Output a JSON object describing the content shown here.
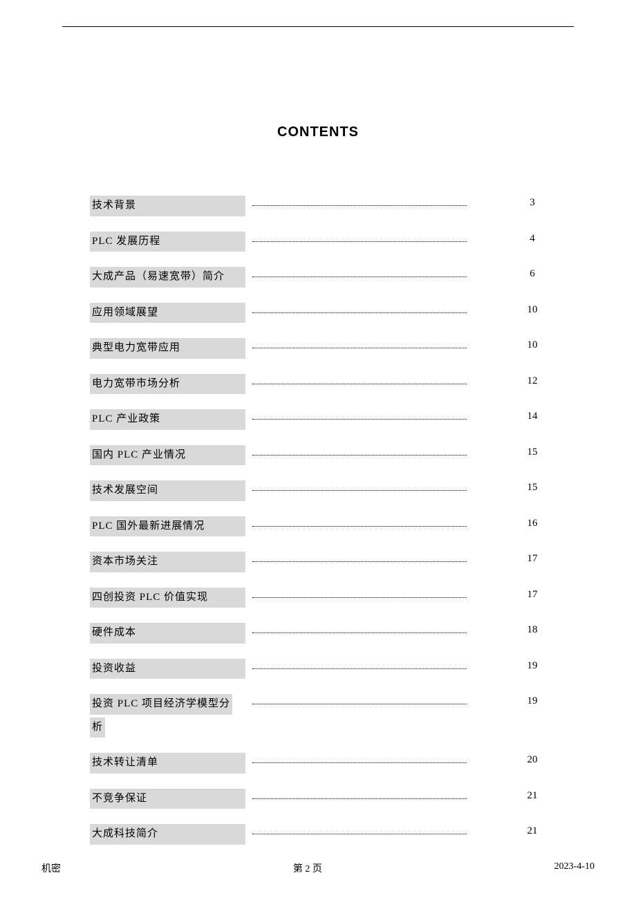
{
  "title": "CONTENTS",
  "toc": [
    {
      "label": "技术背景",
      "page": "3"
    },
    {
      "label": "PLC 发展历程",
      "page": "4"
    },
    {
      "label": "大成产品（易速宽带）简介",
      "page": "6"
    },
    {
      "label": "应用领域展望",
      "page": "10"
    },
    {
      "label": "典型电力宽带应用",
      "page": "10"
    },
    {
      "label": "电力宽带市场分析",
      "page": "12"
    },
    {
      "label": "PLC 产业政策",
      "page": "14"
    },
    {
      "label": "国内 PLC 产业情况",
      "page": "15"
    },
    {
      "label": "技术发展空间",
      "page": "15"
    },
    {
      "label": "PLC 国外最新进展情况",
      "page": "16"
    },
    {
      "label": "资本市场关注",
      "page": "17"
    },
    {
      "label": "四创投资 PLC 价值实现",
      "page": "17"
    },
    {
      "label": "硬件成本",
      "page": "18"
    },
    {
      "label": "投资收益",
      "page": "19"
    },
    {
      "label_line1": "投资 PLC 项目经济学模型分",
      "label_line2": "析",
      "page": "19",
      "multiline": true
    },
    {
      "label": "技术转让清单",
      "page": "20"
    },
    {
      "label": "不竞争保证",
      "page": "21"
    },
    {
      "label": "大成科技简介",
      "page": "21"
    }
  ],
  "footer": {
    "left": "机密",
    "center": "第 2 页",
    "right": "2023-4-10"
  },
  "colors": {
    "highlight": "#d9d9d9",
    "text": "#000000",
    "background": "#ffffff"
  }
}
